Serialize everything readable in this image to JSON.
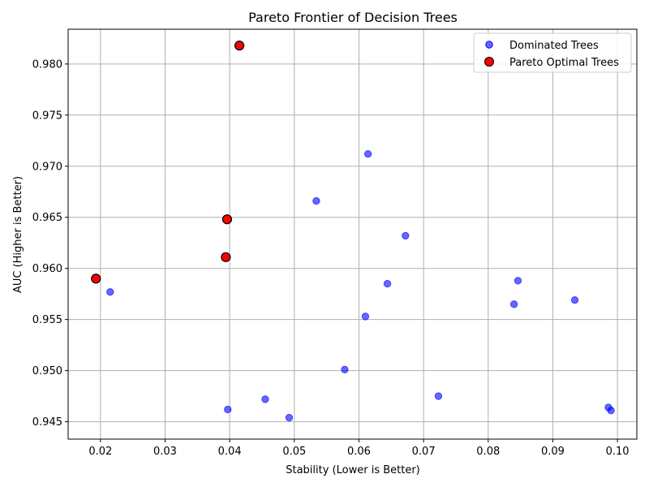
{
  "chart_data": {
    "type": "scatter",
    "title": "Pareto Frontier of Decision Trees",
    "xlabel": "Stability (Lower is Better)",
    "ylabel": "AUC (Higher is Better)",
    "xlim": [
      0.015,
      0.103
    ],
    "ylim": [
      0.9433,
      0.9834
    ],
    "x_ticks": [
      "0.02",
      "0.03",
      "0.04",
      "0.05",
      "0.06",
      "0.07",
      "0.08",
      "0.09",
      "0.10"
    ],
    "y_ticks": [
      "0.945",
      "0.950",
      "0.955",
      "0.960",
      "0.965",
      "0.970",
      "0.975",
      "0.980"
    ],
    "grid": true,
    "legend_position": "top-right",
    "series": [
      {
        "name": "Dominated Trees",
        "color": "#0000ff",
        "marker": "circle",
        "points": [
          {
            "x": 0.0614,
            "y": 0.9712
          },
          {
            "x": 0.0534,
            "y": 0.9666
          },
          {
            "x": 0.0672,
            "y": 0.9632
          },
          {
            "x": 0.0215,
            "y": 0.9577
          },
          {
            "x": 0.0644,
            "y": 0.9585
          },
          {
            "x": 0.061,
            "y": 0.9553
          },
          {
            "x": 0.0846,
            "y": 0.9588
          },
          {
            "x": 0.084,
            "y": 0.9565
          },
          {
            "x": 0.0934,
            "y": 0.9569
          },
          {
            "x": 0.0578,
            "y": 0.9501
          },
          {
            "x": 0.0723,
            "y": 0.9475
          },
          {
            "x": 0.0455,
            "y": 0.9472
          },
          {
            "x": 0.0397,
            "y": 0.9462
          },
          {
            "x": 0.0492,
            "y": 0.9454
          },
          {
            "x": 0.0986,
            "y": 0.9464
          },
          {
            "x": 0.099,
            "y": 0.9461
          }
        ]
      },
      {
        "name": "Pareto Optimal Trees",
        "color": "#ff0000",
        "marker": "circle",
        "points": [
          {
            "x": 0.0415,
            "y": 0.9818
          },
          {
            "x": 0.0396,
            "y": 0.9648
          },
          {
            "x": 0.0394,
            "y": 0.9611
          },
          {
            "x": 0.0193,
            "y": 0.959
          }
        ]
      }
    ]
  }
}
